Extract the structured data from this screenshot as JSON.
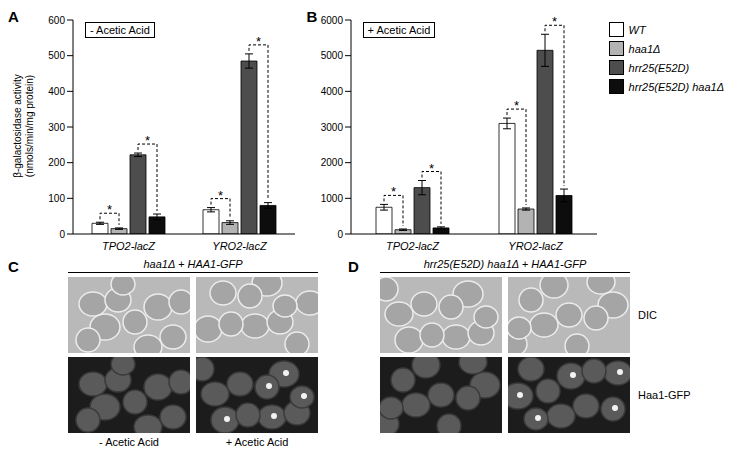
{
  "chart_data": [
    {
      "panel": "A",
      "type": "bar",
      "title": "- Acetic Acid",
      "ylabel": "β-galactosidase activity (nmols/min/mg protein)",
      "categories": [
        "TPO2-lacZ",
        "YRO2-lacZ"
      ],
      "series": [
        {
          "name": "WT",
          "color": "#ffffff",
          "values": [
            30,
            68
          ],
          "errors": [
            3,
            6
          ]
        },
        {
          "name": "haa1Δ",
          "color": "#b3b3b3",
          "values": [
            15,
            32
          ],
          "errors": [
            2,
            5
          ]
        },
        {
          "name": "hrr25(E52D)",
          "color": "#4d4d4d",
          "values": [
            222,
            485
          ],
          "errors": [
            5,
            20
          ]
        },
        {
          "name": "hrr25(E52D) haa1Δ",
          "color": "#0d0d0d",
          "values": [
            48,
            80
          ],
          "errors": [
            8,
            8
          ]
        }
      ],
      "ylim": [
        0,
        600
      ],
      "yticks": [
        0,
        100,
        200,
        300,
        400,
        500,
        600
      ],
      "grid": false,
      "significance": [
        {
          "category": "TPO2-lacZ",
          "pair": [
            "WT",
            "haa1Δ"
          ],
          "label": "*"
        },
        {
          "category": "TPO2-lacZ",
          "pair": [
            "hrr25(E52D)",
            "hrr25(E52D) haa1Δ"
          ],
          "label": "*"
        },
        {
          "category": "YRO2-lacZ",
          "pair": [
            "WT",
            "haa1Δ"
          ],
          "label": "*"
        },
        {
          "category": "YRO2-lacZ",
          "pair": [
            "hrr25(E52D)",
            "hrr25(E52D) haa1Δ"
          ],
          "label": "*"
        }
      ]
    },
    {
      "panel": "B",
      "type": "bar",
      "title": "+ Acetic Acid",
      "legend": "right",
      "categories": [
        "TPO2-lacZ",
        "YRO2-lacZ"
      ],
      "series": [
        {
          "name": "WT",
          "color": "#ffffff",
          "values": [
            750,
            3100
          ],
          "errors": [
            80,
            150
          ]
        },
        {
          "name": "haa1Δ",
          "color": "#b3b3b3",
          "values": [
            120,
            700
          ],
          "errors": [
            20,
            30
          ]
        },
        {
          "name": "hrr25(E52D)",
          "color": "#4d4d4d",
          "values": [
            1300,
            5150
          ],
          "errors": [
            200,
            450
          ]
        },
        {
          "name": "hrr25(E52D) haa1Δ",
          "color": "#0d0d0d",
          "values": [
            170,
            1080
          ],
          "errors": [
            30,
            180
          ]
        }
      ],
      "ylim": [
        0,
        6000
      ],
      "yticks": [
        0,
        1000,
        2000,
        3000,
        4000,
        5000,
        6000
      ],
      "grid": false,
      "significance": [
        {
          "category": "TPO2-lacZ",
          "pair": [
            "WT",
            "haa1Δ"
          ],
          "label": "*"
        },
        {
          "category": "TPO2-lacZ",
          "pair": [
            "hrr25(E52D)",
            "hrr25(E52D) haa1Δ"
          ],
          "label": "*"
        },
        {
          "category": "YRO2-lacZ",
          "pair": [
            "WT",
            "haa1Δ"
          ],
          "label": "*"
        },
        {
          "category": "YRO2-lacZ",
          "pair": [
            "hrr25(E52D)",
            "hrr25(E52D) haa1Δ"
          ],
          "label": "*"
        }
      ]
    }
  ],
  "image_panels": [
    {
      "panel": "C",
      "header": "haa1Δ + HAA1-GFP",
      "columns": [
        "- Acetic Acid",
        "+ Acetic Acid"
      ]
    },
    {
      "panel": "D",
      "header": "hrr25(E52D) haa1Δ + HAA1-GFP",
      "rows": [
        "DIC",
        "Haa1-GFP"
      ]
    }
  ]
}
